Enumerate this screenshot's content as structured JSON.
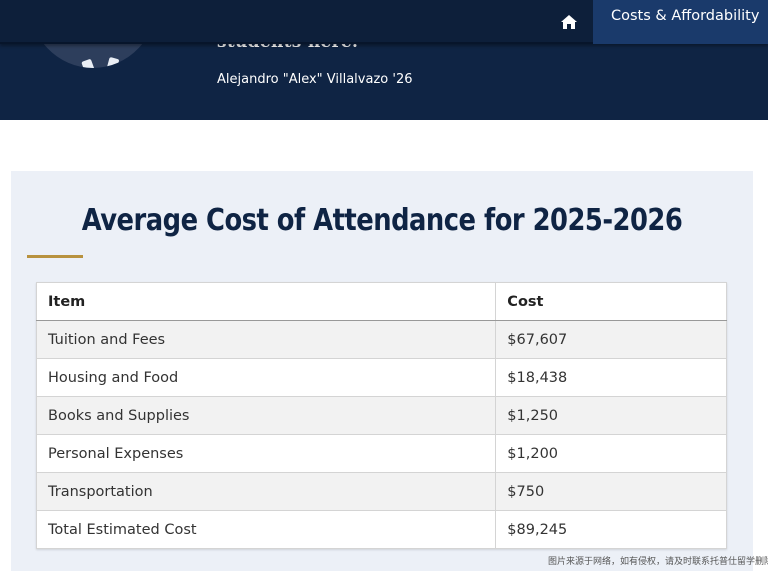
{
  "header": {
    "quote_tail": "students here.",
    "attribution": "Alejandro \"Alex\" Villalvazo '26"
  },
  "nav": {
    "home_icon": "home-icon",
    "active_label": "Costs & Affordability"
  },
  "cost_section": {
    "title": "Average Cost of Attendance for 2025-2026",
    "accent_color": "#b8923f",
    "table": {
      "headers": [
        "Item",
        "Cost"
      ],
      "rows": [
        {
          "item": "Tuition and Fees",
          "cost": "$67,607"
        },
        {
          "item": "Housing and Food",
          "cost": "$18,438"
        },
        {
          "item": "Books and Supplies",
          "cost": "$1,250"
        },
        {
          "item": "Personal Expenses",
          "cost": "$1,200"
        },
        {
          "item": "Transportation",
          "cost": "$750"
        },
        {
          "item": "Total Estimated Cost",
          "cost": "$89,245"
        }
      ]
    }
  },
  "watermark": "图片来源于网络，如有侵权，请及时联系托普仕留学删除"
}
